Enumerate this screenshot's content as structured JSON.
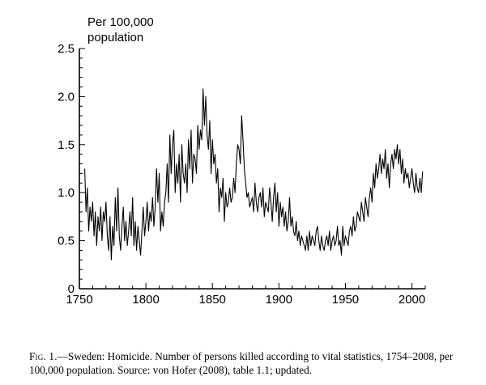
{
  "chart_data": {
    "type": "line",
    "ylabel_line1": "Per 100,000",
    "ylabel_line2": "population",
    "xlabel": "",
    "xlim": [
      1750,
      2010
    ],
    "ylim": [
      0,
      2.5
    ],
    "xticks": [
      1750,
      1800,
      1850,
      1900,
      1950,
      2000
    ],
    "xtick_labels": [
      "1750",
      "1800",
      "1850",
      "1900",
      "1950",
      "2000"
    ],
    "yticks": [
      0,
      0.5,
      1.0,
      1.5,
      2.0,
      2.5
    ],
    "ytick_labels": [
      "0",
      "0.5",
      "1.0",
      "1.5",
      "2.0",
      "2.5"
    ],
    "grid": false,
    "series": [
      {
        "line_color": "#000000",
        "x": [
          1754,
          1755,
          1756,
          1757,
          1758,
          1759,
          1760,
          1761,
          1762,
          1763,
          1764,
          1765,
          1766,
          1767,
          1768,
          1769,
          1770,
          1771,
          1772,
          1773,
          1774,
          1775,
          1776,
          1777,
          1778,
          1779,
          1780,
          1781,
          1782,
          1783,
          1784,
          1785,
          1786,
          1787,
          1788,
          1789,
          1790,
          1791,
          1792,
          1793,
          1794,
          1795,
          1796,
          1797,
          1798,
          1799,
          1800,
          1801,
          1802,
          1803,
          1804,
          1805,
          1806,
          1807,
          1808,
          1809,
          1810,
          1811,
          1812,
          1813,
          1814,
          1815,
          1816,
          1817,
          1818,
          1819,
          1820,
          1821,
          1822,
          1823,
          1824,
          1825,
          1826,
          1827,
          1828,
          1829,
          1830,
          1831,
          1832,
          1833,
          1834,
          1835,
          1836,
          1837,
          1838,
          1839,
          1840,
          1841,
          1842,
          1843,
          1844,
          1845,
          1846,
          1847,
          1848,
          1849,
          1850,
          1851,
          1852,
          1853,
          1854,
          1855,
          1856,
          1857,
          1858,
          1859,
          1860,
          1861,
          1862,
          1863,
          1864,
          1865,
          1866,
          1867,
          1868,
          1869,
          1870,
          1871,
          1872,
          1873,
          1874,
          1875,
          1876,
          1877,
          1878,
          1879,
          1880,
          1881,
          1882,
          1883,
          1884,
          1885,
          1886,
          1887,
          1888,
          1889,
          1890,
          1891,
          1892,
          1893,
          1894,
          1895,
          1896,
          1897,
          1898,
          1899,
          1900,
          1901,
          1902,
          1903,
          1904,
          1905,
          1906,
          1907,
          1908,
          1909,
          1910,
          1911,
          1912,
          1913,
          1914,
          1915,
          1916,
          1917,
          1918,
          1919,
          1920,
          1921,
          1922,
          1923,
          1924,
          1925,
          1926,
          1927,
          1928,
          1929,
          1930,
          1931,
          1932,
          1933,
          1934,
          1935,
          1936,
          1937,
          1938,
          1939,
          1940,
          1941,
          1942,
          1943,
          1944,
          1945,
          1946,
          1947,
          1948,
          1949,
          1950,
          1951,
          1952,
          1953,
          1954,
          1955,
          1956,
          1957,
          1958,
          1959,
          1960,
          1961,
          1962,
          1963,
          1964,
          1965,
          1966,
          1967,
          1968,
          1969,
          1970,
          1971,
          1972,
          1973,
          1974,
          1975,
          1976,
          1977,
          1978,
          1979,
          1980,
          1981,
          1982,
          1983,
          1984,
          1985,
          1986,
          1987,
          1988,
          1989,
          1990,
          1991,
          1992,
          1993,
          1994,
          1995,
          1996,
          1997,
          1998,
          1999,
          2000,
          2001,
          2002,
          2003,
          2004,
          2005,
          2006,
          2007,
          2008
        ],
        "values": [
          1.25,
          0.8,
          1.05,
          0.6,
          0.85,
          0.7,
          0.9,
          0.55,
          0.8,
          0.45,
          0.75,
          0.6,
          0.85,
          0.5,
          0.8,
          0.7,
          0.9,
          0.55,
          0.4,
          0.75,
          0.3,
          0.65,
          0.45,
          0.95,
          0.6,
          1.05,
          0.55,
          0.4,
          0.65,
          0.85,
          0.5,
          0.7,
          0.45,
          0.6,
          0.8,
          0.55,
          0.95,
          0.45,
          0.7,
          0.4,
          0.65,
          0.5,
          0.35,
          0.6,
          0.85,
          0.55,
          0.7,
          0.9,
          0.6,
          0.8,
          0.7,
          0.95,
          0.65,
          0.85,
          1.25,
          0.9,
          1.2,
          0.6,
          0.8,
          0.65,
          0.9,
          1.0,
          1.3,
          0.9,
          1.6,
          1.2,
          1.5,
          1.65,
          1.0,
          1.3,
          1.1,
          1.4,
          0.9,
          1.5,
          1.2,
          1.1,
          1.3,
          1.0,
          1.55,
          1.25,
          1.65,
          1.1,
          1.4,
          1.35,
          1.2,
          1.7,
          1.45,
          1.65,
          1.55,
          2.08,
          1.7,
          2.0,
          1.6,
          1.45,
          1.75,
          1.2,
          1.55,
          1.3,
          1.4,
          1.1,
          1.25,
          0.8,
          1.05,
          0.95,
          1.15,
          0.7,
          1.0,
          0.85,
          0.9,
          1.05,
          0.9,
          0.95,
          1.15,
          1.0,
          1.3,
          1.5,
          1.45,
          1.3,
          1.8,
          1.55,
          1.25,
          1.1,
          0.95,
          1.0,
          0.85,
          0.9,
          0.95,
          0.8,
          1.1,
          0.9,
          0.8,
          0.95,
          1.0,
          0.85,
          1.05,
          0.75,
          0.9,
          0.85,
          0.8,
          1.05,
          0.9,
          0.7,
          0.95,
          1.1,
          0.8,
          1.0,
          0.65,
          0.9,
          0.75,
          0.85,
          0.65,
          0.8,
          0.6,
          0.7,
          0.95,
          0.65,
          0.75,
          0.6,
          0.55,
          0.7,
          0.5,
          0.6,
          0.45,
          0.55,
          0.5,
          0.45,
          0.4,
          0.55,
          0.4,
          0.6,
          0.45,
          0.55,
          0.5,
          0.45,
          0.6,
          0.65,
          0.5,
          0.4,
          0.55,
          0.45,
          0.4,
          0.5,
          0.55,
          0.45,
          0.6,
          0.4,
          0.5,
          0.55,
          0.45,
          0.5,
          0.65,
          0.45,
          0.5,
          0.35,
          0.65,
          0.45,
          0.55,
          0.5,
          0.45,
          0.6,
          0.65,
          0.55,
          0.75,
          0.6,
          0.65,
          0.8,
          0.75,
          0.7,
          0.9,
          0.8,
          0.7,
          0.95,
          0.85,
          0.75,
          0.95,
          1.05,
          0.9,
          1.2,
          1.05,
          1.3,
          1.15,
          1.25,
          1.4,
          1.2,
          1.35,
          1.25,
          1.45,
          1.15,
          1.3,
          1.05,
          1.3,
          1.4,
          1.25,
          1.45,
          1.35,
          1.5,
          1.3,
          1.45,
          1.2,
          1.35,
          1.1,
          1.25,
          1.15,
          1.2,
          1.05,
          1.15,
          1.25,
          1.1,
          1.0,
          1.2,
          1.05,
          1.0,
          1.15,
          1.0,
          1.22
        ]
      }
    ]
  },
  "caption": {
    "prefix": "Fig. 1.",
    "text": "—Sweden: Homicide. Number of persons killed according to vital statistics, 1754–2008, per 100,000 population. Source: von Hofer (2008), table 1.1; updated."
  }
}
